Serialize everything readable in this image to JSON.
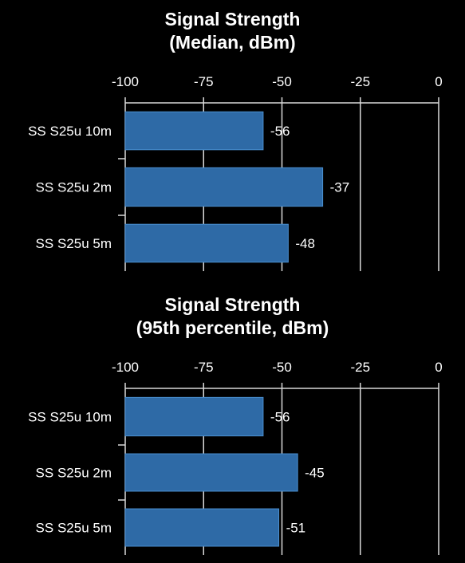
{
  "chart_data": [
    {
      "type": "bar",
      "orientation": "horizontal",
      "title": [
        "Signal Strength",
        "(Median, dBm)"
      ],
      "categories": [
        "SS S25u 10m",
        "SS S25u 2m",
        "SS S25u 5m"
      ],
      "values": [
        -56,
        -37,
        -48
      ],
      "value_labels": [
        "-56",
        "-37",
        "-48"
      ],
      "xlim": [
        -100,
        0
      ],
      "xticks": [
        -100,
        -75,
        -50,
        -25,
        0
      ],
      "xtick_labels": [
        "-100",
        "-75",
        "-50",
        "-25",
        "0"
      ],
      "xaxis_position": "top",
      "grid": true,
      "colors": {
        "bar": "#2e6aa6",
        "bar_edge": "#4a8fd0",
        "grid": "#d9d9d9",
        "text": "#ffffff",
        "background": "#000000"
      }
    },
    {
      "type": "bar",
      "orientation": "horizontal",
      "title": [
        "Signal Strength",
        "(95th percentile, dBm)"
      ],
      "categories": [
        "SS S25u 10m",
        "SS S25u 2m",
        "SS S25u 5m"
      ],
      "values": [
        -56,
        -45,
        -51
      ],
      "value_labels": [
        "-56",
        "-45",
        "-51"
      ],
      "xlim": [
        -100,
        0
      ],
      "xticks": [
        -100,
        -75,
        -50,
        -25,
        0
      ],
      "xtick_labels": [
        "-100",
        "-75",
        "-50",
        "-25",
        "0"
      ],
      "xaxis_position": "top",
      "grid": true,
      "colors": {
        "bar": "#2e6aa6",
        "bar_edge": "#4a8fd0",
        "grid": "#d9d9d9",
        "text": "#ffffff",
        "background": "#000000"
      }
    }
  ]
}
